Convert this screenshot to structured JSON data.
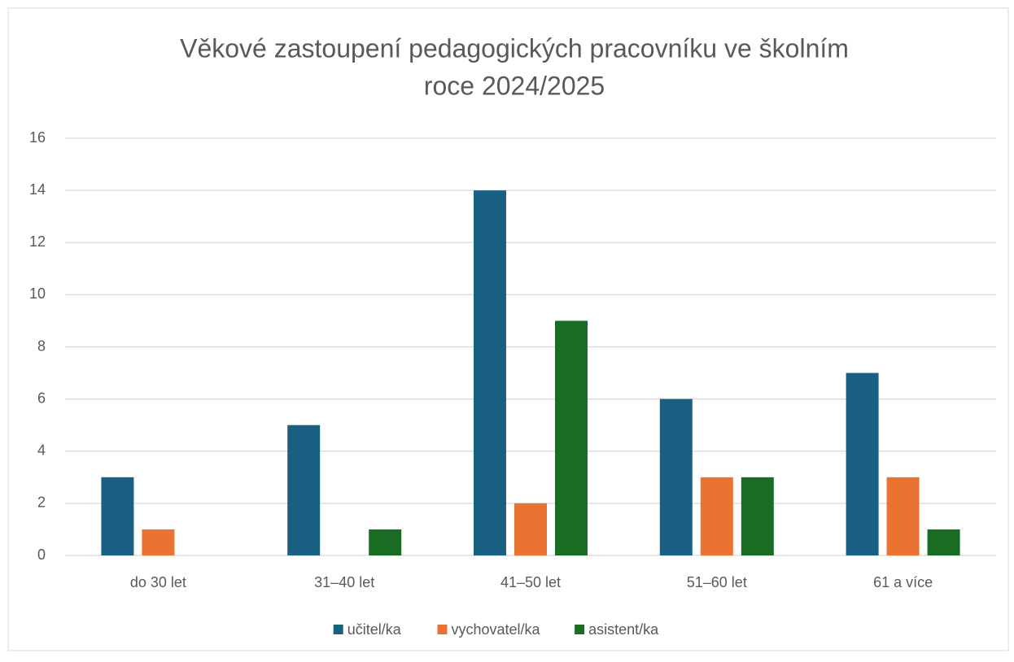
{
  "chart_data": {
    "type": "bar",
    "title": [
      "Věkové zastoupení pedagogických pracovníku ve školním",
      "roce   2024/2025"
    ],
    "categories": [
      "do 30 let",
      "31–40 let",
      "41–50 let",
      "51–60 let",
      "61 a více"
    ],
    "series": [
      {
        "name": "učitel/ka",
        "color": "#196083",
        "values": [
          3,
          5,
          14,
          6,
          7
        ]
      },
      {
        "name": "vychovatel/ka",
        "color": "#ea7331",
        "values": [
          1,
          0,
          2,
          3,
          3
        ]
      },
      {
        "name": "asistent/ka",
        "color": "#1a6b24",
        "values": [
          0,
          1,
          9,
          3,
          1
        ]
      }
    ],
    "ylim": [
      0,
      16
    ],
    "yticks": [
      0,
      2,
      4,
      6,
      8,
      10,
      12,
      14,
      16
    ],
    "grid": true,
    "legend": "bottom"
  }
}
